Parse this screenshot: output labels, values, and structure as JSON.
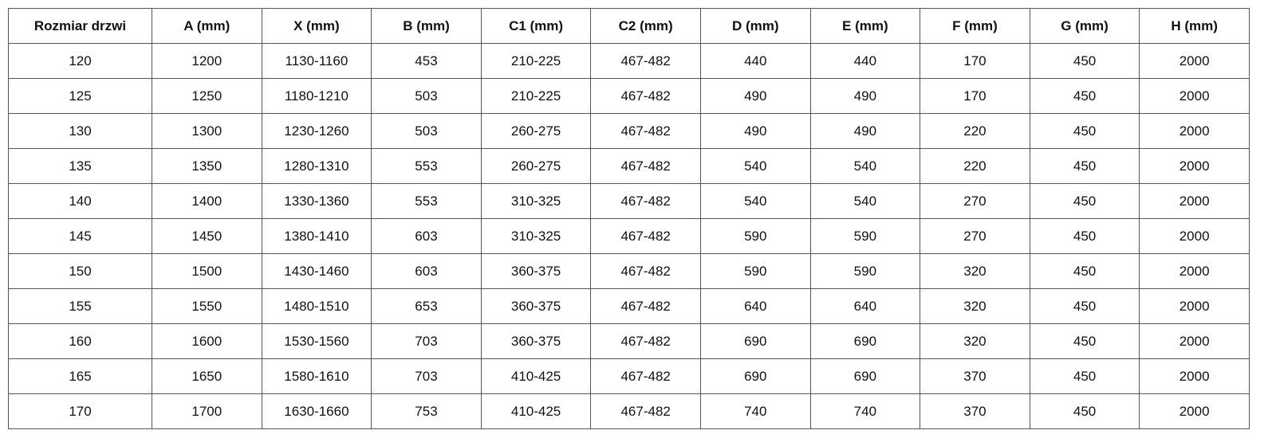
{
  "table": {
    "headers": [
      "Rozmiar drzwi",
      "A (mm)",
      "X (mm)",
      "B (mm)",
      "C1 (mm)",
      "C2 (mm)",
      "D (mm)",
      "E (mm)",
      "F (mm)",
      "G (mm)",
      "H (mm)"
    ],
    "rows": [
      [
        "120",
        "1200",
        "1130-1160",
        "453",
        "210-225",
        "467-482",
        "440",
        "440",
        "170",
        "450",
        "2000"
      ],
      [
        "125",
        "1250",
        "1180-1210",
        "503",
        "210-225",
        "467-482",
        "490",
        "490",
        "170",
        "450",
        "2000"
      ],
      [
        "130",
        "1300",
        "1230-1260",
        "503",
        "260-275",
        "467-482",
        "490",
        "490",
        "220",
        "450",
        "2000"
      ],
      [
        "135",
        "1350",
        "1280-1310",
        "553",
        "260-275",
        "467-482",
        "540",
        "540",
        "220",
        "450",
        "2000"
      ],
      [
        "140",
        "1400",
        "1330-1360",
        "553",
        "310-325",
        "467-482",
        "540",
        "540",
        "270",
        "450",
        "2000"
      ],
      [
        "145",
        "1450",
        "1380-1410",
        "603",
        "310-325",
        "467-482",
        "590",
        "590",
        "270",
        "450",
        "2000"
      ],
      [
        "150",
        "1500",
        "1430-1460",
        "603",
        "360-375",
        "467-482",
        "590",
        "590",
        "320",
        "450",
        "2000"
      ],
      [
        "155",
        "1550",
        "1480-1510",
        "653",
        "360-375",
        "467-482",
        "640",
        "640",
        "320",
        "450",
        "2000"
      ],
      [
        "160",
        "1600",
        "1530-1560",
        "703",
        "360-375",
        "467-482",
        "690",
        "690",
        "320",
        "450",
        "2000"
      ],
      [
        "165",
        "1650",
        "1580-1610",
        "703",
        "410-425",
        "467-482",
        "690",
        "690",
        "370",
        "450",
        "2000"
      ],
      [
        "170",
        "1700",
        "1630-1660",
        "753",
        "410-425",
        "467-482",
        "740",
        "740",
        "370",
        "450",
        "2000"
      ]
    ]
  }
}
